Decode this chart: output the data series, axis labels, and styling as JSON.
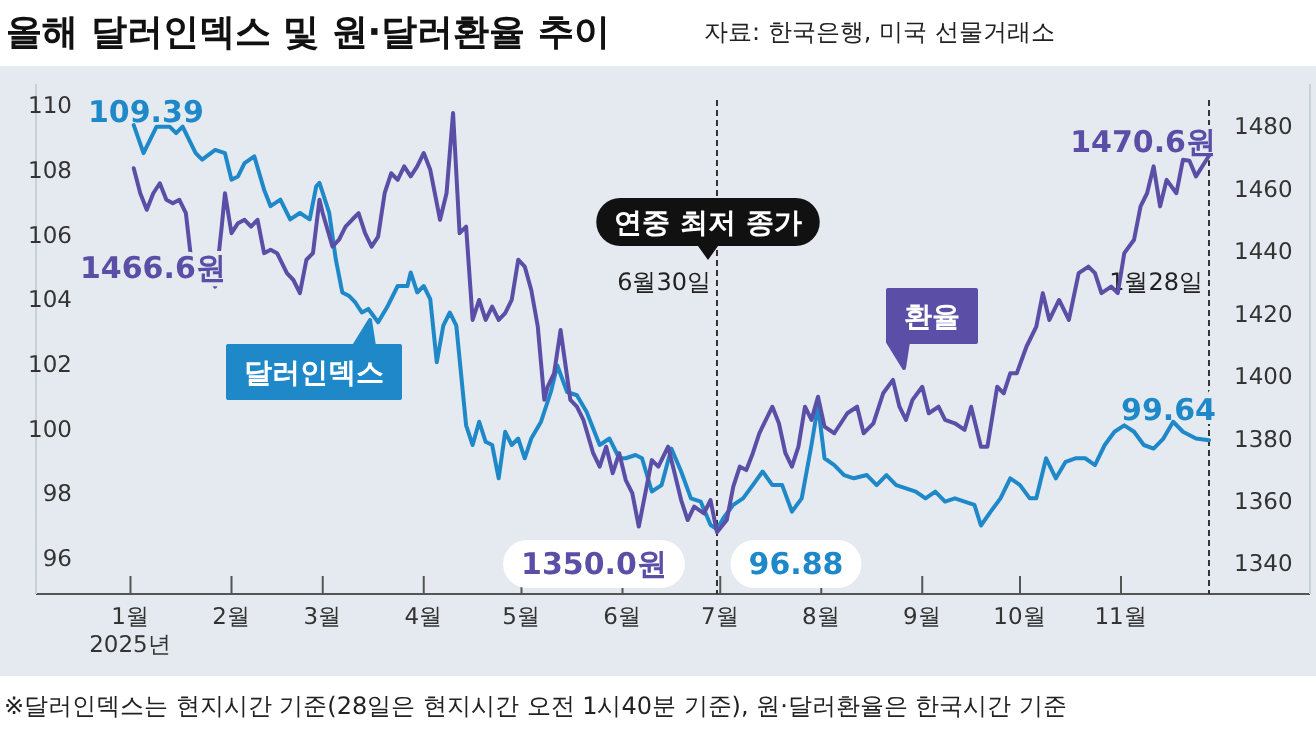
{
  "chart_data": {
    "type": "line",
    "title": "올해 달러인덱스 및 원·달러환율 추이",
    "annotations": [
      "자료: 한국은행, 미국 선물거래소",
      "※달러인덱스는 현지시간 기준(28일은 현지시간 오전 1시40분 기준), 원·달러환율은 한국시간 기준",
      "109.39",
      "1466.6원",
      "1470.6원",
      "99.64",
      "1350.0원",
      "96.88",
      "연중 최저 종가"
    ],
    "xlim": [
      "2024-12-03",
      "2025-12-29"
    ],
    "xticks": [
      {
        "value": "2025-01-01",
        "label": "1월\n2025년"
      },
      {
        "value": "2025-02-01",
        "label": "2월"
      },
      {
        "value": "2025-03-01",
        "label": "3월"
      },
      {
        "value": "2025-04-01",
        "label": "4월"
      },
      {
        "value": "2025-05-01",
        "label": "5월"
      },
      {
        "value": "2025-06-01",
        "label": "6월"
      },
      {
        "value": "2025-07-01",
        "label": "7월"
      },
      {
        "value": "2025-08-01",
        "label": "8월"
      },
      {
        "value": "2025-09-01",
        "label": "9월"
      },
      {
        "value": "2025-10-01",
        "label": "10월"
      },
      {
        "value": "2025-11-01",
        "label": "11월"
      }
    ],
    "ylim": [
      94.88,
      110.66
    ],
    "yticks": [
      96,
      98,
      100,
      102,
      104,
      106,
      108,
      110
    ],
    "y2lim": [
      1330.2,
      1493.6
    ],
    "y2ticks": [
      1340,
      1360,
      1380,
      1400,
      1420,
      1440,
      1460,
      1480
    ],
    "grid": false,
    "ref_lines": [
      {
        "axis": "x",
        "value": "2025-06-30",
        "label": "6월30일",
        "line_style": "dashed",
        "color": "#333333"
      },
      {
        "axis": "x",
        "value": "2025-11-28",
        "label": "1월28일",
        "line_style": "dashed",
        "color": "#333333"
      }
    ],
    "series": [
      {
        "name": "달러인덱스",
        "color": "#1e88c8",
        "x": [
          "2025-01-02",
          "2025-01-05",
          "2025-01-09",
          "2025-01-13",
          "2025-01-15",
          "2025-01-17",
          "2025-01-21",
          "2025-01-23",
          "2025-01-27",
          "2025-01-30",
          "2025-02-01",
          "2025-02-03",
          "2025-02-05",
          "2025-02-08",
          "2025-02-11",
          "2025-02-13",
          "2025-02-16",
          "2025-02-19",
          "2025-02-22",
          "2025-02-25",
          "2025-02-27",
          "2025-02-28",
          "2025-03-03",
          "2025-03-05",
          "2025-03-07",
          "2025-03-09",
          "2025-03-11",
          "2025-03-13",
          "2025-03-15",
          "2025-03-18",
          "2025-03-21",
          "2025-03-24",
          "2025-03-27",
          "2025-03-28",
          "2025-03-30",
          "2025-04-01",
          "2025-04-03",
          "2025-04-05",
          "2025-04-07",
          "2025-04-09",
          "2025-04-11",
          "2025-04-14",
          "2025-04-16",
          "2025-04-18",
          "2025-04-20",
          "2025-04-22",
          "2025-04-24",
          "2025-04-26",
          "2025-04-28",
          "2025-04-30",
          "2025-05-02",
          "2025-05-04",
          "2025-05-07",
          "2025-05-10",
          "2025-05-12",
          "2025-05-15",
          "2025-05-18",
          "2025-05-21",
          "2025-05-25",
          "2025-05-28",
          "2025-05-31",
          "2025-06-02",
          "2025-06-05",
          "2025-06-07",
          "2025-06-10",
          "2025-06-13",
          "2025-06-16",
          "2025-06-19",
          "2025-06-22",
          "2025-06-25",
          "2025-06-28",
          "2025-06-30",
          "2025-07-02",
          "2025-07-05",
          "2025-07-08",
          "2025-07-11",
          "2025-07-14",
          "2025-07-17",
          "2025-07-20",
          "2025-07-23",
          "2025-07-26",
          "2025-07-29",
          "2025-07-31",
          "2025-08-02",
          "2025-08-05",
          "2025-08-08",
          "2025-08-11",
          "2025-08-15",
          "2025-08-18",
          "2025-08-21",
          "2025-08-24",
          "2025-08-27",
          "2025-08-30",
          "2025-09-02",
          "2025-09-05",
          "2025-09-08",
          "2025-09-11",
          "2025-09-14",
          "2025-09-17",
          "2025-09-19",
          "2025-09-22",
          "2025-09-25",
          "2025-09-28",
          "2025-10-01",
          "2025-10-04",
          "2025-10-06",
          "2025-10-09",
          "2025-10-12",
          "2025-10-15",
          "2025-10-18",
          "2025-10-21",
          "2025-10-24",
          "2025-10-27",
          "2025-10-30",
          "2025-11-02",
          "2025-11-05",
          "2025-11-08",
          "2025-11-11",
          "2025-11-14",
          "2025-11-17",
          "2025-11-20",
          "2025-11-24",
          "2025-11-28"
        ],
        "values": [
          109.39,
          108.52,
          109.34,
          109.34,
          109.14,
          109.34,
          108.52,
          108.32,
          108.62,
          108.52,
          107.7,
          107.8,
          108.21,
          108.42,
          107.39,
          106.88,
          107.08,
          106.47,
          106.67,
          106.47,
          107.49,
          107.6,
          106.67,
          105.24,
          104.21,
          104.11,
          103.9,
          103.59,
          103.7,
          103.29,
          103.8,
          104.41,
          104.41,
          104.83,
          104.21,
          104.41,
          104.0,
          102.05,
          103.18,
          103.59,
          103.18,
          100.1,
          99.49,
          100.21,
          99.59,
          99.49,
          98.46,
          99.9,
          99.49,
          99.69,
          99.08,
          99.69,
          100.21,
          101.13,
          101.95,
          101.13,
          101.03,
          100.51,
          99.49,
          99.69,
          99.08,
          99.08,
          99.18,
          99.08,
          98.05,
          98.25,
          99.38,
          98.67,
          97.84,
          97.74,
          97.02,
          96.88,
          97.23,
          97.64,
          97.84,
          98.25,
          98.67,
          98.25,
          98.25,
          97.43,
          97.84,
          99.49,
          100.72,
          99.08,
          98.87,
          98.56,
          98.46,
          98.56,
          98.25,
          98.56,
          98.25,
          98.15,
          98.05,
          97.84,
          98.05,
          97.74,
          97.84,
          97.74,
          97.64,
          97.0,
          97.43,
          97.84,
          98.46,
          98.25,
          97.84,
          97.84,
          99.08,
          98.46,
          98.97,
          99.08,
          99.08,
          98.87,
          99.49,
          99.9,
          100.1,
          99.9,
          99.49,
          99.38,
          99.69,
          100.21,
          99.9,
          99.69,
          99.64
        ]
      },
      {
        "name": "환율",
        "color": "#5b4ea6",
        "axis": "y2",
        "x": [
          "2025-01-02",
          "2025-01-04",
          "2025-01-06",
          "2025-01-08",
          "2025-01-10",
          "2025-01-12",
          "2025-01-14",
          "2025-01-16",
          "2025-01-18",
          "2025-01-20",
          "2025-01-23",
          "2025-01-25",
          "2025-01-27",
          "2025-01-29",
          "2025-01-30",
          "2025-02-01",
          "2025-02-03",
          "2025-02-05",
          "2025-02-07",
          "2025-02-09",
          "2025-02-11",
          "2025-02-13",
          "2025-02-15",
          "2025-02-18",
          "2025-02-20",
          "2025-02-22",
          "2025-02-24",
          "2025-02-26",
          "2025-02-28",
          "2025-03-01",
          "2025-03-04",
          "2025-03-06",
          "2025-03-08",
          "2025-03-10",
          "2025-03-12",
          "2025-03-14",
          "2025-03-16",
          "2025-03-18",
          "2025-03-20",
          "2025-03-22",
          "2025-03-24",
          "2025-03-26",
          "2025-03-28",
          "2025-03-30",
          "2025-04-01",
          "2025-04-03",
          "2025-04-06",
          "2025-04-08",
          "2025-04-10",
          "2025-04-12",
          "2025-04-14",
          "2025-04-16",
          "2025-04-18",
          "2025-04-20",
          "2025-04-22",
          "2025-04-24",
          "2025-04-26",
          "2025-04-28",
          "2025-04-30",
          "2025-05-02",
          "2025-05-04",
          "2025-05-06",
          "2025-05-08",
          "2025-05-09",
          "2025-05-11",
          "2025-05-13",
          "2025-05-14",
          "2025-05-16",
          "2025-05-18",
          "2025-05-20",
          "2025-05-23",
          "2025-05-25",
          "2025-05-27",
          "2025-05-29",
          "2025-05-31",
          "2025-06-02",
          "2025-06-04",
          "2025-06-06",
          "2025-06-10",
          "2025-06-12",
          "2025-06-15",
          "2025-06-17",
          "2025-06-19",
          "2025-06-21",
          "2025-06-23",
          "2025-06-26",
          "2025-06-28",
          "2025-06-30",
          "2025-07-03",
          "2025-07-05",
          "2025-07-07",
          "2025-07-09",
          "2025-07-11",
          "2025-07-13",
          "2025-07-15",
          "2025-07-17",
          "2025-07-19",
          "2025-07-21",
          "2025-07-23",
          "2025-07-25",
          "2025-07-27",
          "2025-07-29",
          "2025-07-31",
          "2025-08-02",
          "2025-08-05",
          "2025-08-09",
          "2025-08-12",
          "2025-08-14",
          "2025-08-17",
          "2025-08-20",
          "2025-08-23",
          "2025-08-25",
          "2025-08-27",
          "2025-08-29",
          "2025-09-01",
          "2025-09-03",
          "2025-09-06",
          "2025-09-08",
          "2025-09-11",
          "2025-09-14",
          "2025-09-16",
          "2025-09-19",
          "2025-09-21",
          "2025-09-23",
          "2025-09-24",
          "2025-09-26",
          "2025-09-28",
          "2025-09-30",
          "2025-10-03",
          "2025-10-06",
          "2025-10-08",
          "2025-10-10",
          "2025-10-13",
          "2025-10-16",
          "2025-10-19",
          "2025-10-22",
          "2025-10-24",
          "2025-10-26",
          "2025-10-29",
          "2025-10-31",
          "2025-11-02",
          "2025-11-05",
          "2025-11-07",
          "2025-11-09",
          "2025-11-11",
          "2025-11-13",
          "2025-11-15",
          "2025-11-18",
          "2025-11-20",
          "2025-11-22",
          "2025-11-24",
          "2025-11-28"
        ],
        "values": [
          1466.6,
          1458.6,
          1453.3,
          1458.6,
          1461.8,
          1456.5,
          1455.4,
          1456.5,
          1452.2,
          1434.0,
          1433.0,
          1433.0,
          1428.7,
          1447.9,
          1458.6,
          1445.8,
          1449.0,
          1450.1,
          1447.9,
          1450.1,
          1439.4,
          1440.5,
          1439.4,
          1433.0,
          1430.8,
          1426.6,
          1437.3,
          1439.4,
          1456.5,
          1452.2,
          1441.5,
          1443.7,
          1447.9,
          1450.1,
          1452.2,
          1445.8,
          1441.5,
          1444.7,
          1458.6,
          1465.0,
          1462.9,
          1467.2,
          1464.0,
          1467.2,
          1471.5,
          1466.1,
          1450.1,
          1458.6,
          1484.3,
          1445.8,
          1447.9,
          1418.0,
          1424.4,
          1418.0,
          1422.3,
          1418.0,
          1420.2,
          1424.4,
          1437.3,
          1435.1,
          1427.6,
          1415.9,
          1392.4,
          1396.6,
          1400.9,
          1414.8,
          1407.3,
          1392.4,
          1390.2,
          1386.0,
          1375.3,
          1371.0,
          1377.4,
          1368.9,
          1375.3,
          1366.7,
          1362.5,
          1351.8,
          1373.1,
          1371.0,
          1377.4,
          1368.9,
          1360.3,
          1353.9,
          1358.2,
          1356.0,
          1360.3,
          1350.0,
          1353.9,
          1364.6,
          1371.0,
          1369.9,
          1375.3,
          1381.7,
          1386.0,
          1390.2,
          1384.9,
          1375.3,
          1371.0,
          1377.4,
          1390.2,
          1386.0,
          1393.4,
          1383.8,
          1381.7,
          1388.1,
          1390.2,
          1381.7,
          1384.9,
          1394.5,
          1398.8,
          1390.2,
          1386.0,
          1392.4,
          1396.6,
          1388.1,
          1390.2,
          1386.0,
          1384.9,
          1382.8,
          1390.2,
          1377.4,
          1377.4,
          1390.2,
          1396.6,
          1394.5,
          1400.9,
          1400.9,
          1409.5,
          1415.9,
          1426.6,
          1418.0,
          1424.4,
          1418.0,
          1433.0,
          1435.1,
          1433.0,
          1426.6,
          1428.7,
          1426.6,
          1439.4,
          1443.7,
          1454.4,
          1458.6,
          1467.2,
          1454.4,
          1462.9,
          1458.6,
          1469.3,
          1469.0,
          1464.0,
          1470.6
        ]
      }
    ]
  }
}
